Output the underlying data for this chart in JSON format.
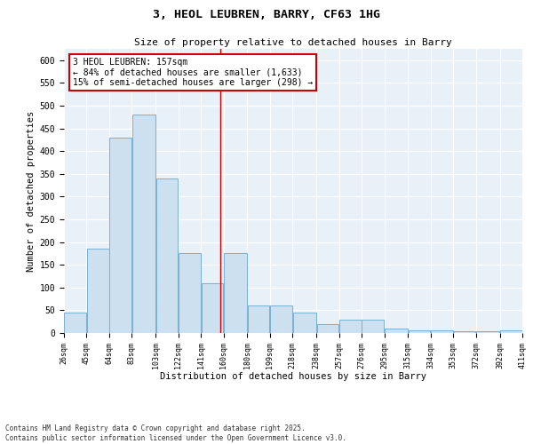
{
  "title": "3, HEOL LEUBREN, BARRY, CF63 1HG",
  "subtitle": "Size of property relative to detached houses in Barry",
  "xlabel": "Distribution of detached houses by size in Barry",
  "ylabel": "Number of detached properties",
  "bar_color": "#cce0f0",
  "bar_edge_color": "#7aafd4",
  "background_color": "#e8f0f8",
  "grid_color": "#ffffff",
  "property_line_x": 157,
  "annotation_text": "3 HEOL LEUBREN: 157sqm\n← 84% of detached houses are smaller (1,633)\n15% of semi-detached houses are larger (298) →",
  "annotation_box_color": "#ffffff",
  "annotation_edge_color": "#cc0000",
  "fig_background": "#ffffff",
  "footnote": "Contains HM Land Registry data © Crown copyright and database right 2025.\nContains public sector information licensed under the Open Government Licence v3.0.",
  "bin_edges": [
    26,
    45,
    64,
    83,
    103,
    122,
    141,
    160,
    180,
    199,
    218,
    238,
    257,
    276,
    295,
    315,
    334,
    353,
    372,
    392,
    411
  ],
  "bar_heights": [
    45,
    185,
    430,
    480,
    340,
    175,
    110,
    175,
    60,
    60,
    45,
    20,
    30,
    30,
    10,
    5,
    5,
    3,
    3,
    5
  ],
  "ylim": [
    0,
    625
  ],
  "yticks": [
    0,
    50,
    100,
    150,
    200,
    250,
    300,
    350,
    400,
    450,
    500,
    550,
    600
  ]
}
